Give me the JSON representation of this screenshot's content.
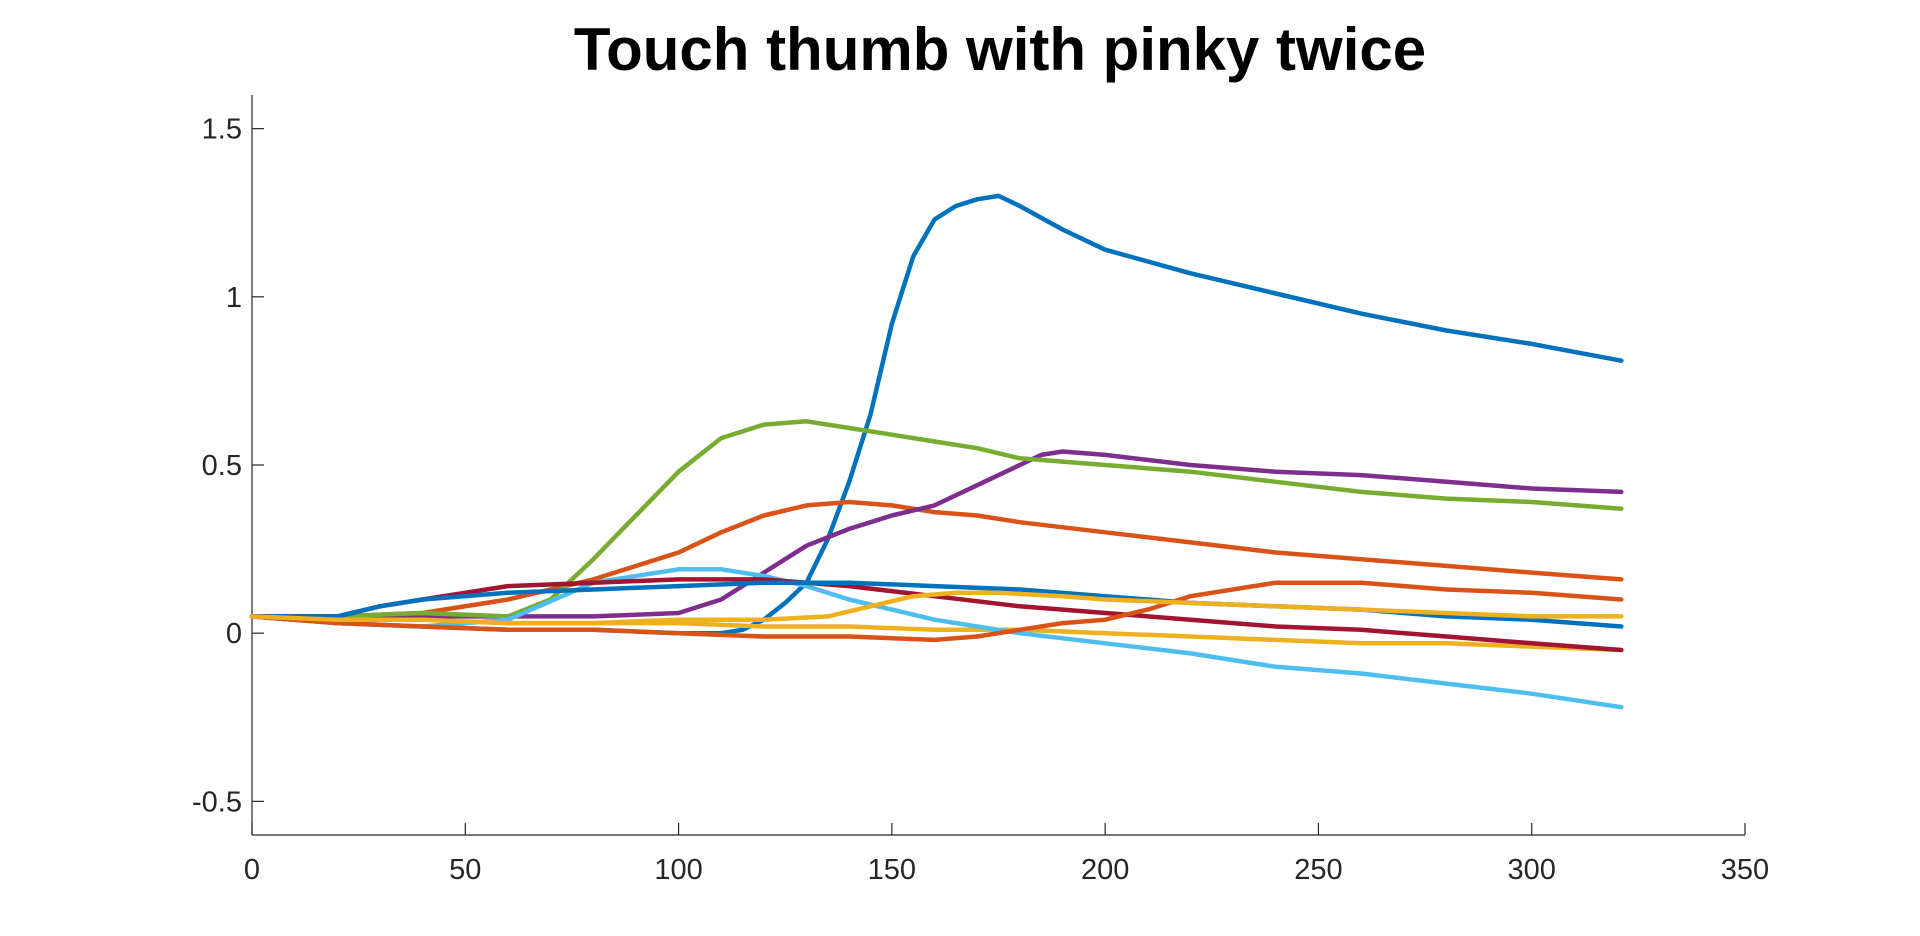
{
  "chart_data": {
    "type": "line",
    "title": "Touch thumb with pinky twice",
    "xlabel": "",
    "ylabel": "",
    "xlim": [
      0,
      350
    ],
    "ylim": [
      -0.6,
      1.6
    ],
    "xticks": [
      0,
      50,
      100,
      150,
      200,
      250,
      300,
      350
    ],
    "yticks": [
      -0.5,
      0,
      0.5,
      1,
      1.5
    ],
    "xtick_labels": [
      "0",
      "50",
      "100",
      "150",
      "200",
      "250",
      "300",
      "350"
    ],
    "ytick_labels": [
      "-0.5",
      "0",
      "0.5",
      "1",
      "1.5"
    ],
    "grid": false,
    "legend": false,
    "series": [
      {
        "color": "#0072BD",
        "x": [
          0,
          20,
          40,
          60,
          80,
          100,
          110,
          115,
          120,
          125,
          130,
          135,
          140,
          145,
          150,
          155,
          160,
          165,
          170,
          175,
          180,
          190,
          200,
          220,
          240,
          260,
          280,
          300,
          321
        ],
        "y": [
          0.05,
          0.03,
          0.02,
          0.01,
          0.01,
          0.0,
          0.0,
          0.01,
          0.04,
          0.09,
          0.15,
          0.28,
          0.45,
          0.65,
          0.92,
          1.12,
          1.23,
          1.27,
          1.29,
          1.3,
          1.27,
          1.2,
          1.14,
          1.07,
          1.01,
          0.95,
          0.9,
          0.86,
          0.81
        ]
      },
      {
        "color": "#D95319",
        "x": [
          0,
          20,
          40,
          60,
          80,
          100,
          110,
          120,
          130,
          140,
          150,
          160,
          170,
          180,
          200,
          220,
          240,
          260,
          280,
          300,
          321
        ],
        "y": [
          0.05,
          0.05,
          0.06,
          0.1,
          0.16,
          0.24,
          0.3,
          0.35,
          0.38,
          0.39,
          0.38,
          0.36,
          0.35,
          0.33,
          0.3,
          0.27,
          0.24,
          0.22,
          0.2,
          0.18,
          0.16
        ]
      },
      {
        "color": "#EDB120",
        "x": [
          0,
          20,
          40,
          60,
          80,
          100,
          120,
          140,
          160,
          180,
          200,
          220,
          240,
          260,
          280,
          300,
          321
        ],
        "y": [
          0.05,
          0.04,
          0.04,
          0.03,
          0.03,
          0.03,
          0.02,
          0.02,
          0.01,
          0.01,
          0.0,
          -0.01,
          -0.02,
          -0.03,
          -0.03,
          -0.04,
          -0.05
        ]
      },
      {
        "color": "#7E2F8E",
        "x": [
          0,
          20,
          40,
          60,
          80,
          100,
          110,
          120,
          130,
          140,
          150,
          160,
          170,
          180,
          185,
          190,
          200,
          220,
          240,
          260,
          280,
          300,
          321
        ],
        "y": [
          0.05,
          0.05,
          0.05,
          0.05,
          0.05,
          0.06,
          0.1,
          0.18,
          0.26,
          0.31,
          0.35,
          0.38,
          0.44,
          0.5,
          0.53,
          0.54,
          0.53,
          0.5,
          0.48,
          0.47,
          0.45,
          0.43,
          0.42
        ]
      },
      {
        "color": "#77AC30",
        "x": [
          0,
          20,
          40,
          60,
          70,
          80,
          90,
          100,
          110,
          120,
          130,
          140,
          150,
          160,
          170,
          180,
          200,
          220,
          240,
          260,
          280,
          300,
          321
        ],
        "y": [
          0.05,
          0.05,
          0.06,
          0.05,
          0.1,
          0.22,
          0.35,
          0.48,
          0.58,
          0.62,
          0.63,
          0.61,
          0.59,
          0.57,
          0.55,
          0.52,
          0.5,
          0.48,
          0.45,
          0.42,
          0.4,
          0.39,
          0.37
        ]
      },
      {
        "color": "#4DBEEE",
        "x": [
          0,
          20,
          40,
          60,
          80,
          100,
          110,
          120,
          130,
          140,
          150,
          160,
          180,
          200,
          220,
          240,
          260,
          280,
          300,
          321
        ],
        "y": [
          0.05,
          0.03,
          0.02,
          0.04,
          0.15,
          0.19,
          0.19,
          0.17,
          0.14,
          0.1,
          0.07,
          0.04,
          0.0,
          -0.03,
          -0.06,
          -0.1,
          -0.12,
          -0.15,
          -0.18,
          -0.22
        ]
      },
      {
        "color": "#A2142F",
        "x": [
          0,
          20,
          30,
          40,
          60,
          80,
          100,
          120,
          140,
          160,
          180,
          200,
          220,
          240,
          260,
          280,
          300,
          321
        ],
        "y": [
          0.05,
          0.05,
          0.08,
          0.1,
          0.14,
          0.15,
          0.16,
          0.16,
          0.14,
          0.11,
          0.08,
          0.06,
          0.04,
          0.02,
          0.01,
          -0.01,
          -0.03,
          -0.05
        ]
      },
      {
        "color": "#0072BD",
        "x": [
          0,
          20,
          30,
          40,
          60,
          80,
          100,
          120,
          140,
          160,
          180,
          200,
          220,
          240,
          260,
          280,
          300,
          321
        ],
        "y": [
          0.05,
          0.05,
          0.08,
          0.1,
          0.12,
          0.13,
          0.14,
          0.15,
          0.15,
          0.14,
          0.13,
          0.11,
          0.09,
          0.08,
          0.07,
          0.05,
          0.04,
          0.02
        ]
      },
      {
        "color": "#D95319",
        "x": [
          0,
          20,
          40,
          60,
          80,
          100,
          120,
          140,
          160,
          170,
          180,
          190,
          200,
          210,
          220,
          240,
          260,
          280,
          300,
          321
        ],
        "y": [
          0.05,
          0.03,
          0.02,
          0.01,
          0.01,
          0.0,
          -0.01,
          -0.01,
          -0.02,
          -0.01,
          0.01,
          0.03,
          0.04,
          0.07,
          0.11,
          0.15,
          0.15,
          0.13,
          0.12,
          0.1
        ]
      },
      {
        "color": "#EDB120",
        "x": [
          0,
          20,
          40,
          60,
          80,
          100,
          120,
          135,
          145,
          155,
          165,
          175,
          190,
          200,
          220,
          240,
          260,
          280,
          300,
          321
        ],
        "y": [
          0.05,
          0.04,
          0.04,
          0.03,
          0.03,
          0.04,
          0.04,
          0.05,
          0.08,
          0.11,
          0.12,
          0.12,
          0.11,
          0.1,
          0.09,
          0.08,
          0.07,
          0.06,
          0.05,
          0.05
        ]
      }
    ]
  }
}
